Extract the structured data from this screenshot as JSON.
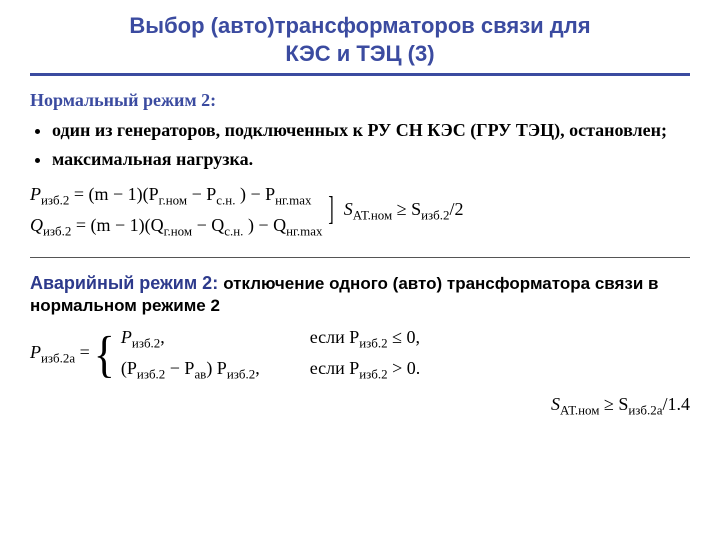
{
  "colors": {
    "titleColor": "#3b4ba0",
    "ruleColor": "#3b4ba0",
    "sectionHeadColor": "#3b4ba0",
    "emergencyColor": "#2d3a8c",
    "textColor": "#000000"
  },
  "fonts": {
    "titleSize": "22px",
    "sectionHeadSize": "18px",
    "bulletSize": "18px",
    "formulaSize": "18px",
    "bodySize": "17px"
  },
  "title": {
    "line1": "Выбор (авто)трансформаторов связи для",
    "line2": "КЭС и ТЭЦ (3)"
  },
  "normalMode": {
    "heading": "Нормальный режим 2:",
    "bullets": [
      "один из генераторов, подключенных к РУ СН КЭС (ГРУ ТЭЦ), остановлен;",
      "максимальная нагрузка."
    ],
    "eqP_lhs": "P",
    "eqP_sub": "изб.2",
    "eqP_rhs_a": "= (m − 1)(P",
    "eqP_rhs_a_sub": "г.ном",
    "eqP_rhs_b": " − P",
    "eqP_rhs_b_sub": "с.н.",
    "eqP_rhs_c": ") − P",
    "eqP_rhs_c_sub": "нг.max",
    "eqQ_lhs": "Q",
    "eqQ_sub": "изб.2",
    "eqQ_rhs_a": "= (m − 1)(Q",
    "eqQ_rhs_a_sub": "г.ном",
    "eqQ_rhs_b": " − Q",
    "eqQ_rhs_b_sub": "с.н.",
    "eqQ_rhs_c": ") − Q",
    "eqQ_rhs_c_sub": "нг.max",
    "cond_lhs": "S",
    "cond_sub": "АТ.ном",
    "cond_op": " ≥ S",
    "cond_rhs_sub": "изб.2",
    "cond_tail": "/2"
  },
  "emergencyMode": {
    "heading_colored": "Аварийный режим 2: ",
    "heading_plain": "отключение одного (авто) трансформатора связи в нормальном режиме 2",
    "pw_lhs": "P",
    "pw_lhs_sub": "изб.2а",
    "pw_eq": " = ",
    "case1_expr_a": "P",
    "case1_expr_sub": "изб.2",
    "case1_expr_tail": ",",
    "case1_cond_a": "если P",
    "case1_cond_sub": "изб.2",
    "case1_cond_tail": " ≤ 0,",
    "case2_expr_a": "(P",
    "case2_expr_sub1": "изб.2",
    "case2_expr_b": " − P",
    "case2_expr_sub2": "ав",
    "case2_expr_c": ")    P",
    "case2_expr_sub3": "изб.2",
    "case2_expr_tail": ",",
    "case2_cond_a": "если P",
    "case2_cond_sub": "изб.2",
    "case2_cond_tail": " > 0.",
    "cond2_lhs": "S",
    "cond2_sub": "АТ.ном",
    "cond2_op": " ≥ S",
    "cond2_rhs_sub": "изб.2а",
    "cond2_tail": "/1.4"
  }
}
